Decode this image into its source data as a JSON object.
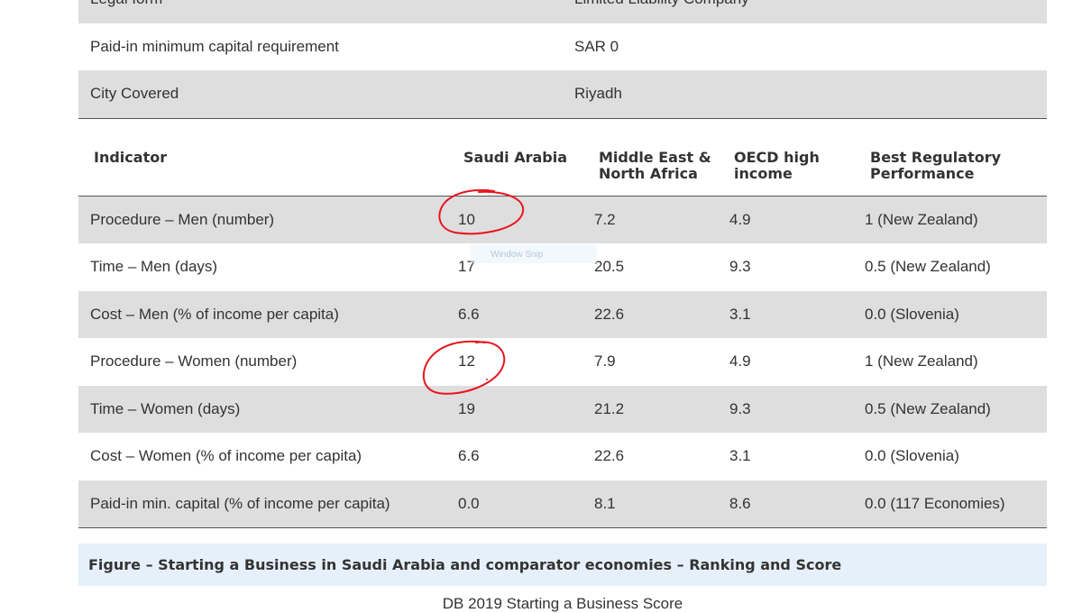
{
  "info_rows": [
    {
      "label": "Legal form",
      "value": "Limited Liability Company"
    },
    {
      "label": "Paid-in minimum capital requirement",
      "value": "SAR 0"
    },
    {
      "label": "City Covered",
      "value": "Riyadh"
    }
  ],
  "indicator_table": {
    "headers": {
      "indicator": "Indicator",
      "saudi": "Saudi Arabia",
      "mena_line1": "Middle East &",
      "mena_line2": "North Africa",
      "oecd_line1": "OECD high",
      "oecd_line2": "income",
      "best_line1": "Best Regulatory",
      "best_line2": "Performance"
    },
    "rows": [
      {
        "indicator": "Procedure – Men (number)",
        "saudi": "10",
        "mena": "7.2",
        "oecd": "4.9",
        "best": "1 (New Zealand)"
      },
      {
        "indicator": "Time – Men (days)",
        "saudi": "17",
        "mena": "20.5",
        "oecd": "9.3",
        "best": "0.5 (New Zealand)"
      },
      {
        "indicator": "Cost – Men (% of income per capita)",
        "saudi": "6.6",
        "mena": "22.6",
        "oecd": "3.1",
        "best": "0.0 (Slovenia)"
      },
      {
        "indicator": "Procedure – Women (number)",
        "saudi": "12",
        "mena": "7.9",
        "oecd": "4.9",
        "best": "1 (New Zealand)"
      },
      {
        "indicator": "Time – Women (days)",
        "saudi": "19",
        "mena": "21.2",
        "oecd": "9.3",
        "best": "0.5 (New Zealand)"
      },
      {
        "indicator": "Cost – Women (% of income per capita)",
        "saudi": "6.6",
        "mena": "22.6",
        "oecd": "3.1",
        "best": "0.0 (Slovenia)"
      },
      {
        "indicator": "Paid-in min. capital (% of income per capita)",
        "saudi": "0.0",
        "mena": "8.1",
        "oecd": "8.6",
        "best": "0.0 (117 Economies)"
      }
    ]
  },
  "figure_caption": "Figure – Starting a Business in Saudi Arabia and comparator economies – Ranking and Score",
  "score_title": "DB 2019 Starting a Business Score",
  "snip_overlay_text": "Window Snip",
  "colors": {
    "row_shade": "#dedede",
    "caption_bg": "#e6f0fa",
    "annotation_red": "#e8141e",
    "text": "#333333"
  }
}
